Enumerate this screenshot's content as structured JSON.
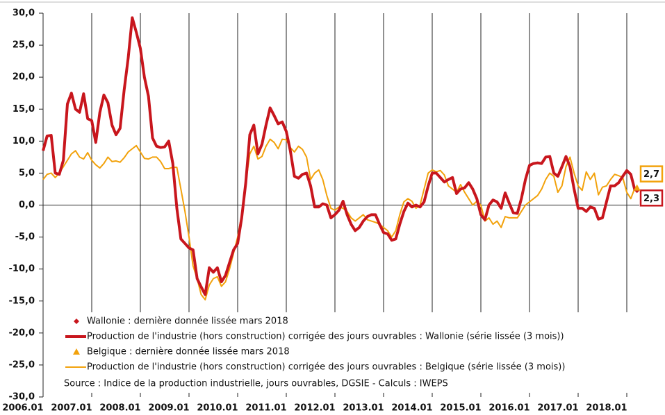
{
  "chart_data": {
    "type": "line",
    "x": [
      2006.0,
      2006.083,
      2006.167,
      2006.25,
      2006.333,
      2006.417,
      2006.5,
      2006.583,
      2006.667,
      2006.75,
      2006.833,
      2006.917,
      2007.0,
      2007.083,
      2007.167,
      2007.25,
      2007.333,
      2007.417,
      2007.5,
      2007.583,
      2007.667,
      2007.75,
      2007.833,
      2007.917,
      2008.0,
      2008.083,
      2008.167,
      2008.25,
      2008.333,
      2008.417,
      2008.5,
      2008.583,
      2008.667,
      2008.75,
      2008.833,
      2008.917,
      2009.0,
      2009.083,
      2009.167,
      2009.25,
      2009.333,
      2009.417,
      2009.5,
      2009.583,
      2009.667,
      2009.75,
      2009.833,
      2009.917,
      2010.0,
      2010.083,
      2010.167,
      2010.25,
      2010.333,
      2010.417,
      2010.5,
      2010.583,
      2010.667,
      2010.75,
      2010.833,
      2010.917,
      2011.0,
      2011.083,
      2011.167,
      2011.25,
      2011.333,
      2011.417,
      2011.5,
      2011.583,
      2011.667,
      2011.75,
      2011.833,
      2011.917,
      2012.0,
      2012.083,
      2012.167,
      2012.25,
      2012.333,
      2012.417,
      2012.5,
      2012.583,
      2012.667,
      2012.75,
      2012.833,
      2012.917,
      2013.0,
      2013.083,
      2013.167,
      2013.25,
      2013.333,
      2013.417,
      2013.5,
      2013.583,
      2013.667,
      2013.75,
      2013.833,
      2013.917,
      2014.0,
      2014.083,
      2014.167,
      2014.25,
      2014.333,
      2014.417,
      2014.5,
      2014.583,
      2014.667,
      2014.75,
      2014.833,
      2014.917,
      2015.0,
      2015.083,
      2015.167,
      2015.25,
      2015.333,
      2015.417,
      2015.5,
      2015.583,
      2015.667,
      2015.75,
      2015.833,
      2015.917,
      2016.0,
      2016.083,
      2016.167,
      2016.25,
      2016.333,
      2016.417,
      2016.5,
      2016.583,
      2016.667,
      2016.75,
      2016.833,
      2016.917,
      2017.0,
      2017.083,
      2017.167,
      2017.25,
      2017.333,
      2017.417,
      2017.5,
      2017.583,
      2017.667,
      2017.75,
      2017.833,
      2017.917,
      2018.0,
      2018.083,
      2018.167
    ],
    "series": [
      {
        "name": "Wallonie : dernière donnée lissée mars 2018",
        "type": "scatter",
        "marker": "diamond",
        "color": "#c8161d",
        "x": [
          2018.167
        ],
        "values": [
          2.3
        ],
        "value_labels": [
          "2,3"
        ]
      },
      {
        "name": "Production de l'industrie (hors construction) corrigée des jours ouvrables : Wallonie (série lissée (3 mois))",
        "type": "line",
        "color": "#c8161d",
        "values": [
          8.5,
          10.8,
          10.9,
          5.0,
          4.8,
          7.0,
          15.8,
          17.5,
          15.0,
          14.5,
          17.4,
          13.5,
          13.2,
          9.8,
          14.5,
          17.2,
          16.0,
          12.5,
          11.0,
          12.0,
          18.0,
          23.0,
          29.3,
          27.0,
          24.5,
          20.0,
          17.0,
          10.5,
          9.2,
          9.0,
          9.1,
          10.0,
          6.5,
          -0.5,
          -5.3,
          -6.0,
          -6.7,
          -7.0,
          -11.5,
          -12.8,
          -14.0,
          -9.8,
          -10.5,
          -9.8,
          -12.0,
          -11.0,
          -9.0,
          -7.0,
          -6.0,
          -2.0,
          3.5,
          11.0,
          12.5,
          8.0,
          9.5,
          12.5,
          15.2,
          14.0,
          12.7,
          13.0,
          11.5,
          8.5,
          4.5,
          4.2,
          4.8,
          5.0,
          3.0,
          -0.3,
          -0.3,
          0.2,
          0.0,
          -2.0,
          -1.5,
          -0.8,
          0.6,
          -1.5,
          -3.0,
          -4.0,
          -3.5,
          -2.5,
          -1.8,
          -1.5,
          -1.5,
          -3.0,
          -4.3,
          -4.5,
          -5.5,
          -5.3,
          -3.0,
          -1.0,
          0.3,
          -0.3,
          0.0,
          -0.3,
          0.5,
          3.0,
          5.0,
          5.0,
          4.3,
          3.6,
          4.0,
          4.3,
          1.8,
          2.5,
          2.7,
          3.5,
          2.5,
          1.0,
          -1.5,
          -2.3,
          0.0,
          0.8,
          0.5,
          -0.5,
          1.9,
          0.3,
          -1.2,
          -1.3,
          1.0,
          4.0,
          6.2,
          6.5,
          6.6,
          6.5,
          7.5,
          7.6,
          5.0,
          4.5,
          6.0,
          7.6,
          6.0,
          2.5,
          -0.5,
          -0.5,
          -1.0,
          -0.3,
          -0.5,
          -2.2,
          -2.0,
          0.5,
          3.0,
          3.0,
          3.5,
          4.5,
          5.4,
          4.8,
          2.3
        ]
      },
      {
        "name": "Belgique : dernière donnée lissée mars 2018",
        "type": "scatter",
        "marker": "triangle",
        "color": "#f2a20c",
        "x": [
          2018.167
        ],
        "values": [
          2.7
        ],
        "value_labels": [
          "2,7"
        ]
      },
      {
        "name": "Production de l'industrie (hors construction) corrigée des jours ouvrables : Belgique (série lissée (3 mois))",
        "type": "line",
        "color": "#f2a20c",
        "values": [
          4.0,
          4.8,
          5.0,
          4.3,
          5.0,
          6.0,
          7.0,
          8.0,
          8.5,
          7.5,
          7.2,
          8.2,
          7.0,
          6.3,
          5.8,
          6.5,
          7.5,
          6.8,
          6.9,
          6.7,
          7.4,
          8.3,
          8.8,
          9.3,
          8.3,
          7.3,
          7.2,
          7.5,
          7.5,
          6.8,
          5.7,
          5.7,
          5.9,
          5.9,
          2.5,
          -1.0,
          -5.0,
          -9.5,
          -11.5,
          -14.0,
          -14.8,
          -12.5,
          -11.5,
          -11.2,
          -12.7,
          -12.0,
          -10.0,
          -7.5,
          -5.0,
          -1.5,
          3.5,
          8.0,
          9.2,
          7.2,
          7.6,
          9.2,
          10.3,
          9.8,
          8.8,
          10.3,
          10.2,
          9.0,
          8.3,
          9.2,
          8.7,
          7.5,
          4.0,
          5.0,
          5.5,
          4.0,
          1.5,
          -0.5,
          -0.8,
          -0.3,
          -0.5,
          -1.0,
          -2.0,
          -2.5,
          -2.0,
          -1.5,
          -2.3,
          -2.5,
          -2.7,
          -3.0,
          -3.5,
          -4.0,
          -5.0,
          -4.0,
          -1.5,
          0.5,
          1.0,
          0.6,
          -0.5,
          0.0,
          2.5,
          5.0,
          5.5,
          5.2,
          5.4,
          4.7,
          3.0,
          2.5,
          2.0,
          3.2,
          2.0,
          1.0,
          0.0,
          0.6,
          0.0,
          -2.5,
          -2.0,
          -3.0,
          -2.5,
          -3.5,
          -1.8,
          -2.0,
          -2.0,
          -2.0,
          -1.0,
          0.0,
          0.5,
          1.0,
          1.5,
          2.5,
          4.0,
          5.0,
          4.5,
          2.0,
          3.0,
          6.0,
          7.5,
          5.0,
          3.0,
          2.3,
          5.2,
          4.0,
          5.0,
          1.6,
          2.8,
          3.0,
          4.0,
          4.8,
          4.6,
          4.3,
          2.0,
          1.0,
          2.7
        ]
      }
    ],
    "source": "Source : Indice de la production industrielle, jours ouvrables, DGSIE - Calculs : IWEPS",
    "xlim": [
      2006,
      2018.4
    ],
    "xticks": [
      {
        "value": 2006,
        "label": "2006.01"
      },
      {
        "value": 2007,
        "label": "2007.01"
      },
      {
        "value": 2008,
        "label": "2008.01"
      },
      {
        "value": 2009,
        "label": "2009.01"
      },
      {
        "value": 2010,
        "label": "2010.01"
      },
      {
        "value": 2011,
        "label": "2011.01"
      },
      {
        "value": 2012,
        "label": "2012.01"
      },
      {
        "value": 2013,
        "label": "2013.01"
      },
      {
        "value": 2014,
        "label": "2014.01"
      },
      {
        "value": 2015,
        "label": "2015.01"
      },
      {
        "value": 2016,
        "label": "2016.01"
      },
      {
        "value": 2017,
        "label": "2017.01"
      },
      {
        "value": 2018,
        "label": "2018.01"
      }
    ],
    "ylim": [
      -30,
      30
    ],
    "yticks": [
      {
        "value": 30,
        "label": "30,0"
      },
      {
        "value": 25,
        "label": "25,0"
      },
      {
        "value": 20,
        "label": "20,0"
      },
      {
        "value": 15,
        "label": "15,0"
      },
      {
        "value": 10,
        "label": "10,0"
      },
      {
        "value": 5,
        "label": "5,0"
      },
      {
        "value": 0,
        "label": "0,0"
      },
      {
        "value": -5,
        "label": "-5,0"
      },
      {
        "value": -10,
        "label": "-10,0"
      },
      {
        "value": -15,
        "label": "-15,0"
      },
      {
        "value": -20,
        "label": "-20,0"
      },
      {
        "value": -25,
        "label": "-25,0"
      },
      {
        "value": -30,
        "label": "-30,0"
      }
    ],
    "grid": true
  }
}
